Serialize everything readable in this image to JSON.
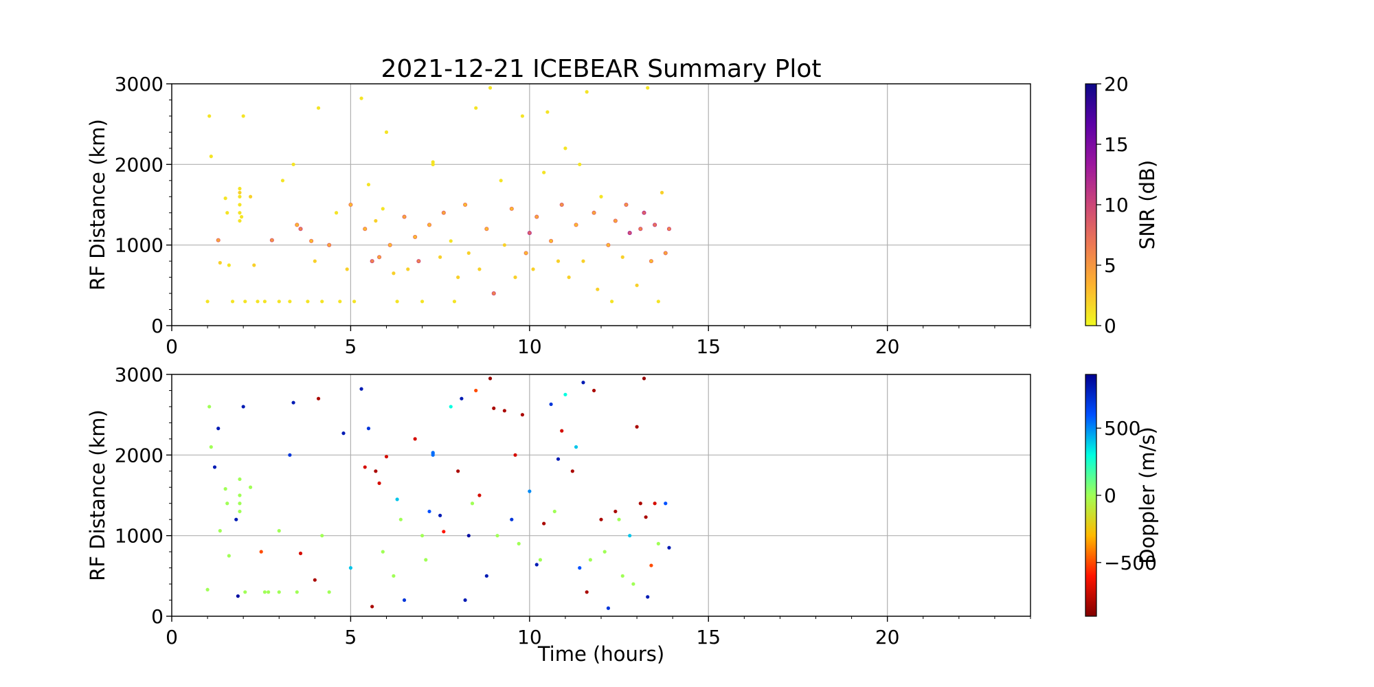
{
  "chart_data": [
    {
      "type": "scatter",
      "title": "2021-12-21 ICEBEAR Summary Plot",
      "xlabel": "",
      "ylabel": "RF Distance (km)",
      "xlim": [
        0,
        24
      ],
      "ylim": [
        0,
        3000
      ],
      "xticks": [
        "0",
        "5",
        "10",
        "15",
        "20"
      ],
      "yticks": [
        "0",
        "1000",
        "2000",
        "3000"
      ],
      "grid": true,
      "color_variable": "snr",
      "colorbar": {
        "label": "SNR (dB)",
        "range": [
          0,
          20
        ],
        "ticks": [
          "0",
          "5",
          "10",
          "15",
          "20"
        ],
        "colormap": "plasma_r",
        "colors": [
          "#f0f921",
          "#fdb42f",
          "#ed7953",
          "#cc4778",
          "#9c179e",
          "#5c01a6",
          "#0d0887"
        ]
      },
      "series": [
        {
          "points_note": "",
          "x": [
            1.0,
            1.05,
            1.1,
            1.3,
            1.35,
            1.5,
            1.55,
            1.6,
            1.7,
            1.9,
            1.95,
            2.0,
            2.05,
            2.2,
            2.3,
            2.4,
            2.6,
            2.8,
            3.0,
            3.1,
            3.3,
            3.4,
            3.5,
            3.6,
            3.8,
            3.9,
            4.0,
            4.1,
            4.2,
            4.4,
            4.6,
            4.7,
            4.9,
            5.0,
            5.1,
            5.3,
            5.4,
            5.5,
            5.6,
            5.7,
            5.8,
            5.9,
            6.0,
            6.1,
            6.2,
            6.3,
            6.5,
            6.6,
            6.8,
            6.9,
            7.0,
            7.2,
            7.3,
            7.5,
            7.6,
            7.8,
            7.9,
            8.0,
            8.2,
            8.3,
            8.5,
            8.6,
            8.8,
            8.9,
            9.0,
            9.2,
            9.3,
            9.5,
            9.6,
            9.8,
            9.9,
            10.0,
            10.1,
            10.2,
            10.4,
            10.5,
            10.6,
            10.8,
            10.9,
            11.0,
            11.1,
            11.3,
            11.4,
            11.5,
            11.6,
            11.8,
            11.9,
            12.0,
            12.2,
            12.3,
            12.4,
            12.6,
            12.7,
            12.8,
            13.0,
            13.1,
            13.2,
            13.3,
            13.4,
            13.5,
            13.6,
            13.7,
            13.8,
            13.9,
            1.9,
            1.9,
            1.9,
            1.9,
            1.9,
            7.3,
            7.3
          ],
          "y": [
            300,
            2600,
            2100,
            1060,
            780,
            1580,
            1400,
            750,
            300,
            1650,
            1350,
            2600,
            300,
            1600,
            750,
            300,
            300,
            1060,
            300,
            1800,
            300,
            2000,
            1250,
            1200,
            300,
            1050,
            800,
            2700,
            300,
            1000,
            1400,
            300,
            700,
            1500,
            300,
            2820,
            1200,
            1750,
            800,
            1300,
            850,
            1450,
            2400,
            1000,
            650,
            300,
            1350,
            700,
            1100,
            800,
            300,
            1250,
            2000,
            850,
            1400,
            1050,
            300,
            600,
            1500,
            900,
            2700,
            700,
            1200,
            2950,
            400,
            1800,
            1000,
            1450,
            600,
            2600,
            900,
            1150,
            700,
            1350,
            1900,
            2650,
            1050,
            800,
            1500,
            2200,
            600,
            1250,
            2000,
            800,
            2900,
            1400,
            450,
            1600,
            1000,
            300,
            1300,
            850,
            1500,
            1150,
            500,
            1200,
            1400,
            2950,
            800,
            1250,
            300,
            1650,
            900,
            1200,
            1700,
            1500,
            1400,
            1300,
            1600,
            2000,
            2030
          ],
          "snr": [
            1,
            1,
            1,
            4,
            2,
            1,
            1,
            1,
            1,
            2,
            1,
            1,
            1,
            2,
            2,
            1,
            1,
            5,
            1,
            1,
            1,
            1,
            3,
            6,
            1,
            3,
            2,
            1,
            1,
            4,
            1,
            1,
            2,
            3,
            1,
            1,
            3,
            1,
            6,
            2,
            4,
            1,
            1,
            3,
            2,
            1,
            4,
            2,
            3,
            6,
            1,
            3,
            1,
            2,
            4,
            1,
            1,
            2,
            3,
            2,
            1,
            2,
            3,
            1,
            6,
            1,
            2,
            3,
            2,
            1,
            3,
            8,
            2,
            4,
            1,
            1,
            3,
            2,
            5,
            1,
            2,
            3,
            1,
            2,
            1,
            4,
            2,
            1,
            3,
            1,
            4,
            2,
            5,
            9,
            2,
            6,
            8,
            1,
            3,
            7,
            1,
            2,
            4,
            6,
            1,
            1,
            1,
            1,
            1,
            1,
            1
          ]
        }
      ]
    },
    {
      "type": "scatter",
      "title": "",
      "xlabel": "Time (hours)",
      "ylabel": "RF Distance (km)",
      "xlim": [
        0,
        24
      ],
      "ylim": [
        0,
        3000
      ],
      "xticks": [
        "0",
        "5",
        "10",
        "15",
        "20"
      ],
      "yticks": [
        "0",
        "1000",
        "2000",
        "3000"
      ],
      "grid": true,
      "color_variable": "doppler",
      "colorbar": {
        "label": "Doppler (m/s)",
        "range": [
          -900,
          900
        ],
        "ticks": [
          "−500",
          "0",
          "500"
        ],
        "tick_values": [
          -500,
          0,
          500
        ],
        "colormap": "jet_r",
        "colors": [
          "#800000",
          "#ff1400",
          "#ffb900",
          "#a0ff56",
          "#00ffe0",
          "#0050ff",
          "#00008f"
        ]
      },
      "series": [
        {
          "x": [
            1.0,
            1.05,
            1.1,
            1.2,
            1.3,
            1.35,
            1.5,
            1.55,
            1.6,
            1.8,
            1.85,
            2.0,
            2.05,
            2.2,
            2.5,
            2.7,
            3.0,
            3.3,
            3.4,
            3.5,
            3.6,
            4.0,
            4.1,
            4.2,
            4.8,
            5.0,
            5.3,
            5.4,
            5.5,
            5.6,
            5.7,
            5.8,
            6.0,
            6.2,
            6.3,
            6.5,
            6.8,
            7.0,
            7.2,
            7.3,
            7.5,
            7.6,
            7.8,
            8.0,
            8.1,
            8.2,
            8.3,
            8.5,
            8.6,
            8.8,
            8.9,
            9.0,
            9.3,
            9.5,
            9.6,
            9.8,
            10.0,
            10.2,
            10.4,
            10.6,
            10.8,
            10.9,
            11.0,
            11.2,
            11.3,
            11.4,
            11.5,
            11.6,
            11.8,
            12.0,
            12.2,
            12.4,
            12.6,
            12.8,
            13.0,
            13.1,
            13.2,
            13.25,
            13.3,
            13.4,
            13.5,
            13.6,
            13.8,
            13.9,
            1.9,
            1.9,
            1.9,
            1.9,
            7.3,
            7.3,
            2.6,
            3.0,
            4.4,
            5.9,
            6.4,
            7.1,
            8.4,
            9.7,
            10.7,
            11.7,
            12.5,
            12.9,
            9.1,
            10.3,
            12.1
          ],
          "y": [
            330,
            2600,
            2100,
            1850,
            2330,
            1060,
            1580,
            1400,
            750,
            1200,
            250,
            2600,
            300,
            1600,
            800,
            300,
            1060,
            2000,
            2650,
            300,
            780,
            450,
            2700,
            1000,
            2270,
            600,
            2820,
            1850,
            2330,
            120,
            1800,
            1650,
            1980,
            500,
            1450,
            200,
            2200,
            1000,
            1300,
            2020,
            1250,
            1050,
            2600,
            1800,
            2700,
            200,
            1000,
            2800,
            1500,
            500,
            2950,
            2580,
            2550,
            1200,
            2000,
            2500,
            1550,
            640,
            1150,
            2630,
            1950,
            2300,
            2750,
            1800,
            2100,
            600,
            2900,
            300,
            2800,
            1200,
            100,
            1300,
            500,
            1000,
            2350,
            1400,
            2950,
            1230,
            240,
            630,
            1400,
            900,
            1400,
            850,
            1700,
            1500,
            1400,
            1300,
            2000,
            2030,
            300,
            300,
            300,
            800,
            1200,
            700,
            1400,
            900,
            1300,
            700,
            1200,
            400,
            1000,
            700,
            800
          ],
          "doppler": [
            0,
            0,
            0,
            800,
            800,
            0,
            0,
            0,
            0,
            800,
            850,
            800,
            0,
            0,
            -500,
            0,
            0,
            700,
            800,
            0,
            -700,
            -800,
            -800,
            0,
            800,
            400,
            800,
            -700,
            700,
            -800,
            -800,
            -700,
            -700,
            0,
            400,
            700,
            -700,
            0,
            600,
            550,
            800,
            -600,
            300,
            -800,
            800,
            800,
            850,
            -500,
            -700,
            800,
            -850,
            -800,
            -800,
            700,
            -700,
            -800,
            500,
            800,
            -800,
            700,
            800,
            -700,
            300,
            -800,
            400,
            600,
            800,
            -800,
            -800,
            -800,
            700,
            -800,
            0,
            400,
            -800,
            -800,
            -850,
            -800,
            800,
            -500,
            -700,
            0,
            600,
            800,
            0,
            0,
            0,
            0,
            550,
            550,
            0,
            0,
            0,
            0,
            0,
            0,
            0,
            0,
            0,
            0,
            0,
            0,
            0,
            0,
            0
          ]
        }
      ]
    }
  ]
}
